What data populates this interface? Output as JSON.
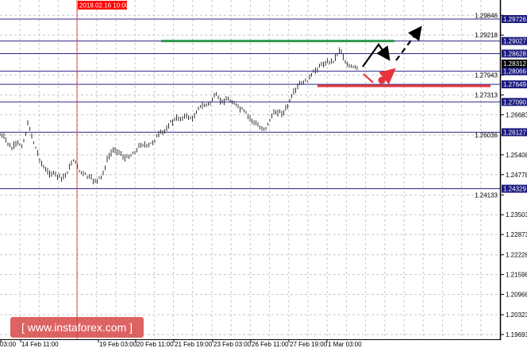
{
  "chart_data": {
    "type": "candlestick",
    "y_range": [
      1.19693,
      1.29846
    ],
    "grid": true,
    "y_ticks": [
      "1.29846",
      "1.29218",
      "1.27943",
      "1.27313",
      "1.26683",
      "1.26036",
      "1.25408",
      "1.24778",
      "1.24133",
      "1.23503",
      "1.22873",
      "1.22228",
      "1.21598",
      "1.20968",
      "1.20323",
      "1.19693"
    ],
    "x_ticks": [
      "03:00",
      "14 Feb 11:00",
      "19 Feb 03:00",
      "20 Feb 11:00",
      "21 Feb 19:00",
      "23 Feb 03:00",
      "26 Feb 11:00",
      "27 Feb 19:00",
      "1 Mar 03:00"
    ],
    "highlighted_time": "2018.02.16 10:00",
    "current_price": "1.28312",
    "levels": [
      {
        "value": 1.29726,
        "label": "1.29726"
      },
      {
        "value": 1.29027,
        "label": "1.29027"
      },
      {
        "value": 1.28628,
        "label": "1.28628"
      },
      {
        "value": 1.28066,
        "label": "1.28066"
      },
      {
        "value": 1.27649,
        "label": "1.27649"
      },
      {
        "value": 1.2709,
        "label": "1.27090"
      },
      {
        "value": 1.26127,
        "label": "1.26127"
      },
      {
        "value": 1.24329,
        "label": "1.24329"
      }
    ],
    "target_level": {
      "value": 1.29027,
      "color": "#2e9a4e"
    },
    "stop_level": {
      "value": 1.27649,
      "color": "#e8343c"
    },
    "price_path": [
      1.2604,
      1.2591,
      1.2558,
      1.2578,
      1.2571,
      1.2642,
      1.2578,
      1.2528,
      1.249,
      1.2482,
      1.2477,
      1.2465,
      1.249,
      1.2528,
      1.249,
      1.2477,
      1.2465,
      1.2457,
      1.2472,
      1.2528,
      1.2558,
      1.2553,
      1.2528,
      1.254,
      1.2553,
      1.2578,
      1.2566,
      1.2583,
      1.2604,
      1.2616,
      1.2642,
      1.2654,
      1.2659,
      1.2664,
      1.2654,
      1.2692,
      1.2697,
      1.2705,
      1.273,
      1.271,
      1.2717,
      1.271,
      1.2692,
      1.2679,
      1.2659,
      1.2642,
      1.2624,
      1.2629,
      1.2667,
      1.2679,
      1.2674,
      1.2705,
      1.2743,
      1.2768,
      1.2775,
      1.2793,
      1.2818,
      1.2831,
      1.2836,
      1.2844,
      1.2882,
      1.2831,
      1.2818,
      1.2818
    ],
    "colors": {
      "level": "#2a2a8a",
      "axis_label_bg": "#1a1a80",
      "current_bg": "#000000",
      "vline": "#e84a4a",
      "arrow_black": "#000000",
      "arrow_red": "#e8343c"
    }
  },
  "watermark": "[ www.instaforex.com ]"
}
